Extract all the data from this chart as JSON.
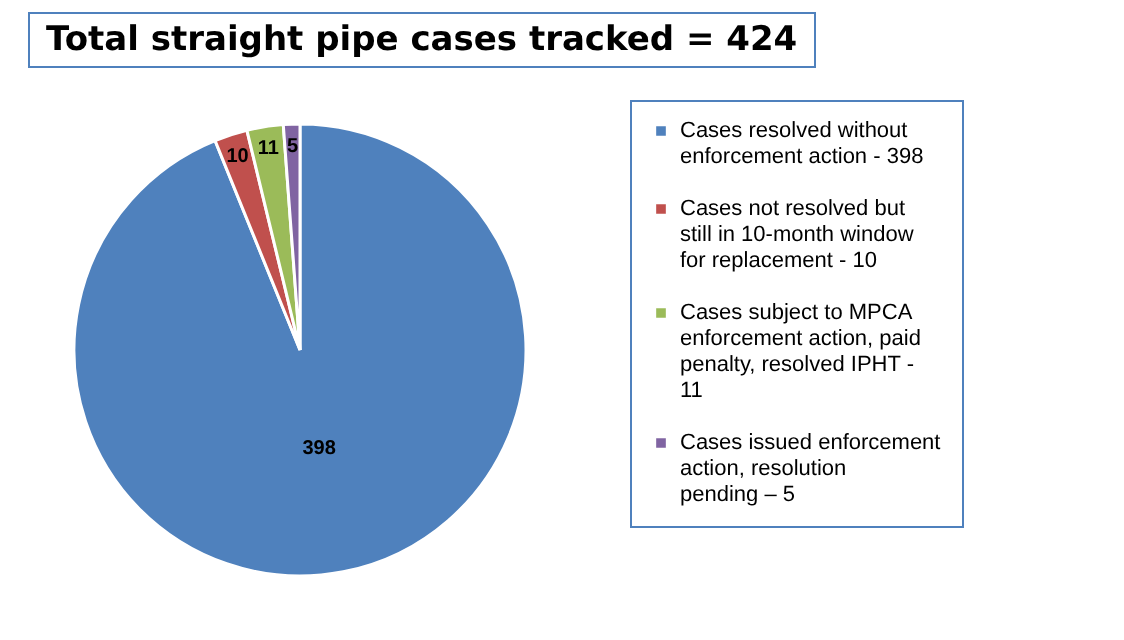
{
  "chart_data": {
    "type": "pie",
    "title": "Total straight pipe cases tracked = 424",
    "categories": [
      "Cases resolved without enforcement action - 398",
      "Cases not resolved but still in 10-month window for replacement - 10",
      "Cases subject to MPCA enforcement action, paid penalty, resolved IPHT - 11",
      "Cases issued enforcement action, resolution pending – 5"
    ],
    "values": [
      398,
      10,
      11,
      5
    ],
    "colors": [
      "#4f81bd",
      "#c0504d",
      "#9bbb59",
      "#8064a2"
    ],
    "data_labels": true,
    "legend": "right"
  }
}
